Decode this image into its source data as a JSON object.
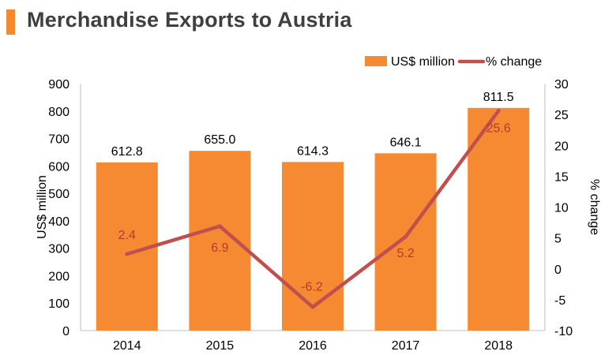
{
  "title": "Merchandise Exports to Austria",
  "colors": {
    "accent": "#f28a30",
    "bar": "#f58a33",
    "line": "#c0504d",
    "label_in_bar": "#b8392e",
    "title": "#3f3f3f"
  },
  "chart_data": {
    "type": "bar",
    "categories": [
      "2014",
      "2015",
      "2016",
      "2017",
      "2018"
    ],
    "series": [
      {
        "name": "US$ million",
        "type": "bar",
        "axis": "left",
        "values": [
          612.8,
          655.0,
          614.3,
          646.1,
          811.5
        ],
        "labels": [
          "612.8",
          "655.0",
          "614.3",
          "646.1",
          "811.5"
        ]
      },
      {
        "name": "% change",
        "type": "line",
        "axis": "right",
        "values": [
          2.4,
          6.9,
          -6.2,
          5.2,
          25.6
        ],
        "labels": [
          "2.4",
          "6.9",
          "-6.2",
          "5.2",
          "25.6"
        ]
      }
    ],
    "ylabel": "US$ million",
    "y2label": "% change",
    "ylim": [
      0,
      900
    ],
    "yticks": [
      "0",
      "100",
      "200",
      "300",
      "400",
      "500",
      "600",
      "700",
      "800",
      "900"
    ],
    "y2lim": [
      -10,
      30
    ],
    "y2ticks": [
      "-10",
      "-5",
      "0",
      "5",
      "10",
      "15",
      "20",
      "25",
      "30"
    ],
    "legend": "top-right",
    "grid": false
  }
}
